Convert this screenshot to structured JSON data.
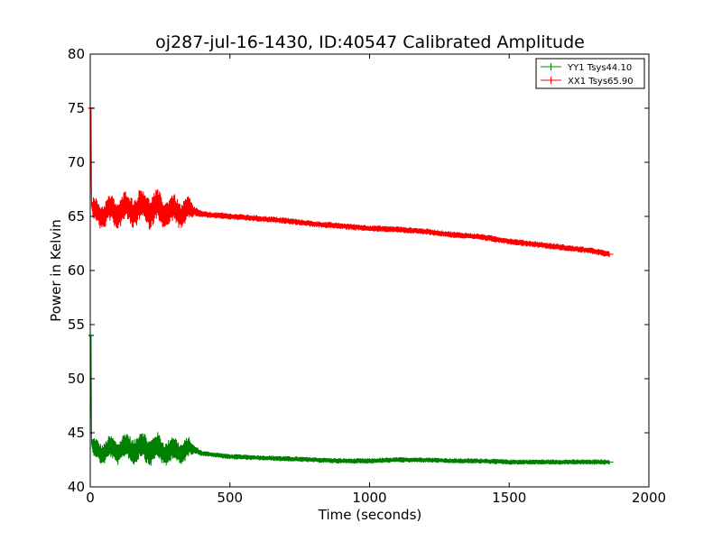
{
  "chart_data": {
    "type": "line",
    "title": "oj287-jul-16-1430, ID:40547 Calibrated Amplitude",
    "xlabel": "Time (seconds)",
    "ylabel": "Power in Kelvin",
    "xlim": [
      0,
      2000
    ],
    "ylim": [
      40,
      80
    ],
    "xticks": [
      0,
      500,
      1000,
      1500,
      2000
    ],
    "yticks": [
      40,
      45,
      50,
      55,
      60,
      65,
      70,
      75,
      80
    ],
    "grid": false,
    "legend_position": "top-right",
    "series": [
      {
        "name": "YY1 Tsys44.10",
        "color": "#008000",
        "x": [
          0,
          3,
          5,
          8,
          15,
          50,
          100,
          150,
          200,
          250,
          300,
          350,
          370,
          400,
          500,
          600,
          700,
          800,
          900,
          1000,
          1100,
          1200,
          1300,
          1400,
          1500,
          1600,
          1700,
          1800,
          1860
        ],
        "y": [
          43.5,
          54.0,
          44.0,
          43.5,
          43.4,
          43.3,
          43.5,
          43.6,
          43.6,
          43.4,
          43.3,
          43.4,
          43.5,
          43.1,
          42.8,
          42.7,
          42.6,
          42.5,
          42.4,
          42.4,
          42.5,
          42.5,
          42.4,
          42.4,
          42.3,
          42.3,
          42.3,
          42.3,
          42.3
        ],
        "spread": [
          0.2,
          0.2,
          0.4,
          0.8,
          0.9,
          1.0,
          1.1,
          1.2,
          1.3,
          1.2,
          1.1,
          1.0,
          0.4,
          0.25,
          0.25,
          0.25,
          0.25,
          0.25,
          0.25,
          0.25,
          0.25,
          0.25,
          0.25,
          0.25,
          0.25,
          0.25,
          0.25,
          0.25,
          0.25
        ]
      },
      {
        "name": "XX1 Tsys65.90",
        "color": "#ff0000",
        "x": [
          0,
          3,
          5,
          8,
          15,
          50,
          100,
          150,
          200,
          250,
          300,
          350,
          370,
          400,
          500,
          600,
          700,
          800,
          900,
          1000,
          1100,
          1200,
          1300,
          1400,
          1500,
          1600,
          1700,
          1800,
          1860
        ],
        "y": [
          65.5,
          75.0,
          66.0,
          65.5,
          65.3,
          65.3,
          65.5,
          65.7,
          65.8,
          65.6,
          65.4,
          65.4,
          65.5,
          65.2,
          65.0,
          64.8,
          64.6,
          64.3,
          64.1,
          63.9,
          63.8,
          63.6,
          63.3,
          63.1,
          62.7,
          62.4,
          62.1,
          61.8,
          61.5
        ],
        "spread": [
          0.3,
          0.3,
          0.5,
          1.0,
          1.1,
          1.2,
          1.3,
          1.4,
          1.5,
          1.4,
          1.3,
          1.2,
          0.5,
          0.3,
          0.3,
          0.3,
          0.3,
          0.3,
          0.3,
          0.3,
          0.3,
          0.3,
          0.3,
          0.3,
          0.3,
          0.3,
          0.3,
          0.3,
          0.3
        ]
      }
    ]
  }
}
